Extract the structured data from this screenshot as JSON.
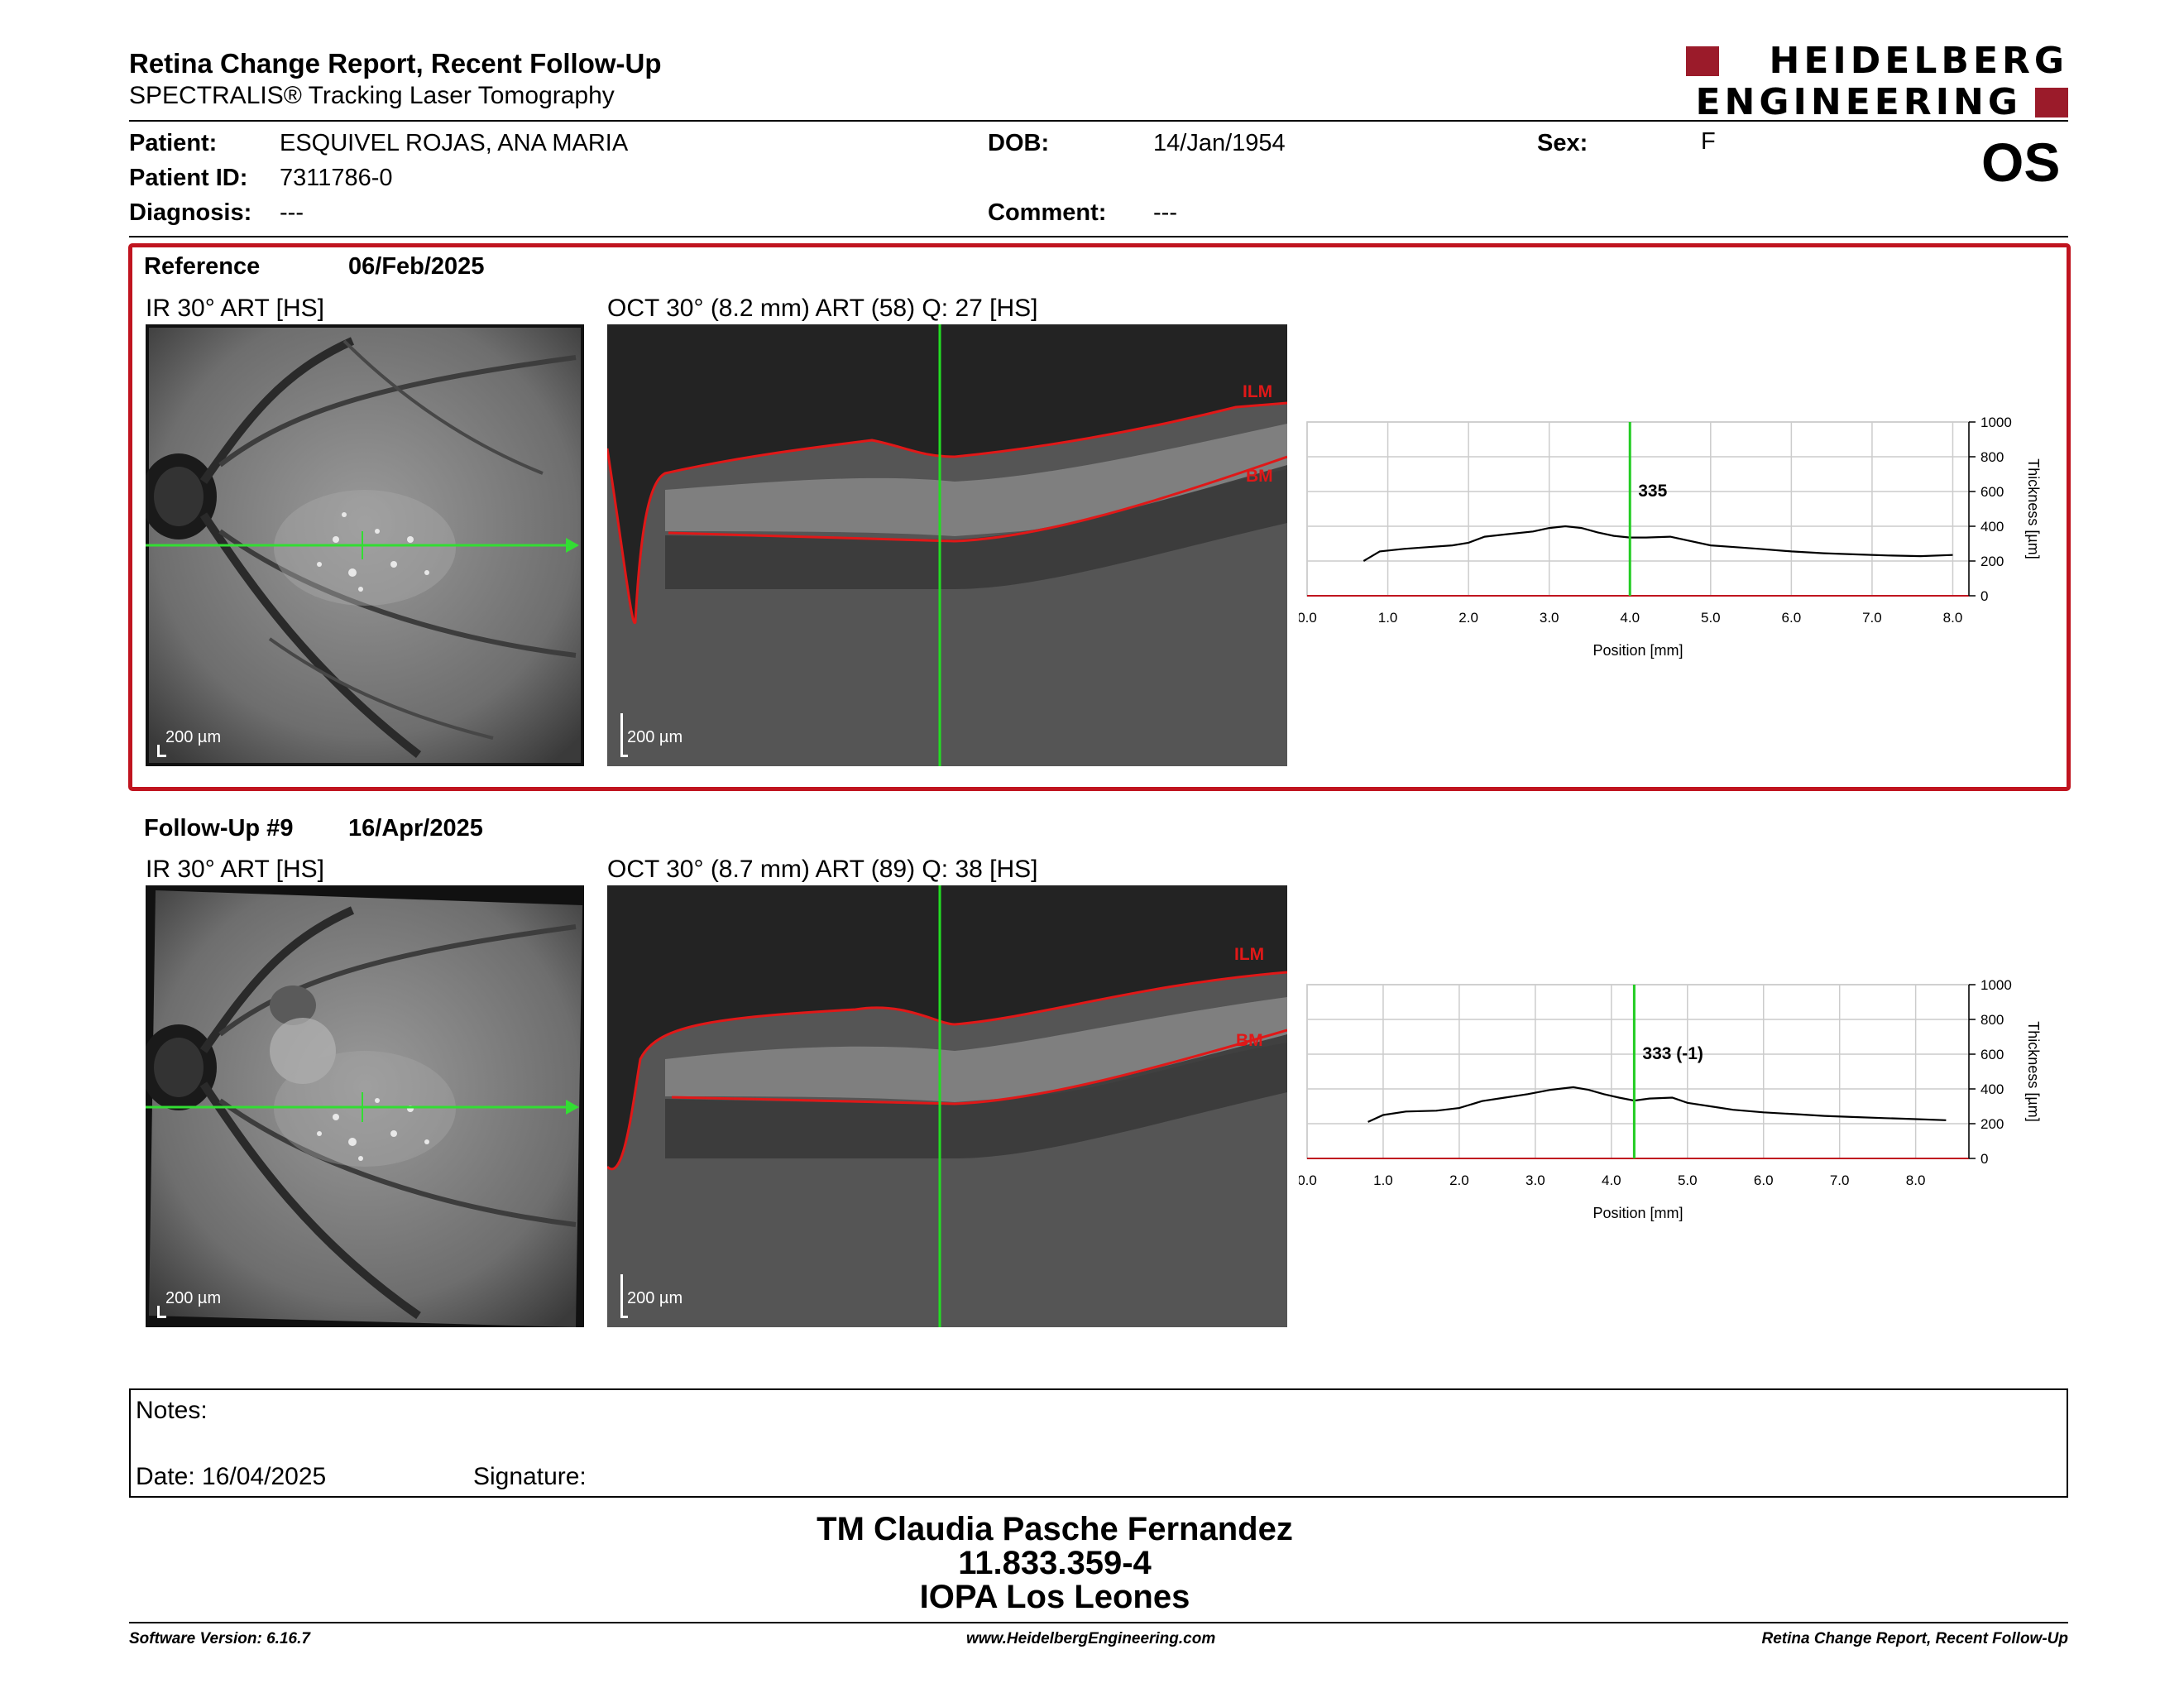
{
  "header": {
    "title": "Retina Change Report, Recent Follow-Up",
    "subtitle": "SPECTRALIS® Tracking Laser Tomography",
    "logo_line1": "HEIDELBERG",
    "logo_line2": "ENGINEERING",
    "brand_color": "#9b1b2a",
    "eye": "OS"
  },
  "patient": {
    "patient_label": "Patient:",
    "patient_name": "ESQUIVEL ROJAS, ANA MARIA",
    "id_label": "Patient ID:",
    "id_value": "7311786-0",
    "diagnosis_label": "Diagnosis:",
    "diagnosis_value": "---",
    "dob_label": "DOB:",
    "dob_value": "14/Jan/1954",
    "comment_label": "Comment:",
    "comment_value": "---",
    "sex_label": "Sex:",
    "sex_value": "F"
  },
  "reference": {
    "label": "Reference",
    "date": "06/Feb/2025",
    "ir_title": "IR 30° ART [HS]",
    "oct_title": "OCT 30° (8.2 mm) ART (58) Q: 27 [HS]",
    "ir_scale": "200 µm",
    "oct_scale": "200 µm",
    "ilm_label": "ILM",
    "bm_label": "BM",
    "highlight_color": "#c0141f"
  },
  "followup": {
    "label": "Follow-Up #9",
    "date": "16/Apr/2025",
    "ir_title": "IR 30° ART [HS]",
    "oct_title": "OCT 30° (8.7 mm) ART (89) Q: 38 [HS]",
    "ir_scale": "200 µm",
    "oct_scale": "200 µm",
    "ilm_label": "ILM",
    "bm_label": "BM"
  },
  "chart_data": [
    {
      "type": "line",
      "xlabel": "Position [mm]",
      "ylabel": "Thickness [µm]",
      "xlim": [
        0,
        8.2
      ],
      "ylim": [
        0,
        1000
      ],
      "x_ticks": [
        "0.0",
        "1.0",
        "2.0",
        "3.0",
        "4.0",
        "5.0",
        "6.0",
        "7.0",
        "8.0"
      ],
      "y_ticks": [
        "0",
        "200",
        "400",
        "600",
        "800",
        "1000"
      ],
      "grid": true,
      "marker_x": 4.0,
      "marker_label": "335",
      "series": [
        {
          "x": [
            0.7,
            0.9,
            1.2,
            1.5,
            1.8,
            2.0,
            2.2,
            2.5,
            2.8,
            3.0,
            3.2,
            3.4,
            3.6,
            3.8,
            4.0,
            4.2,
            4.5,
            4.7,
            5.0,
            5.3,
            5.6,
            6.0,
            6.4,
            6.8,
            7.2,
            7.6,
            8.0
          ],
          "y": [
            200,
            255,
            270,
            280,
            290,
            305,
            340,
            355,
            370,
            390,
            400,
            390,
            365,
            345,
            335,
            335,
            340,
            320,
            290,
            280,
            270,
            255,
            245,
            238,
            232,
            228,
            235
          ]
        }
      ]
    },
    {
      "type": "line",
      "xlabel": "Position [mm]",
      "ylabel": "Thickness [µm]",
      "xlim": [
        0,
        8.7
      ],
      "ylim": [
        0,
        1000
      ],
      "x_ticks": [
        "0.0",
        "1.0",
        "2.0",
        "3.0",
        "4.0",
        "5.0",
        "6.0",
        "7.0",
        "8.0"
      ],
      "y_ticks": [
        "0",
        "200",
        "400",
        "600",
        "800",
        "1000"
      ],
      "grid": true,
      "marker_x": 4.3,
      "marker_label": "333 (-1)",
      "series": [
        {
          "x": [
            0.8,
            1.0,
            1.3,
            1.7,
            2.0,
            2.3,
            2.6,
            2.9,
            3.2,
            3.5,
            3.7,
            3.9,
            4.1,
            4.3,
            4.5,
            4.8,
            5.0,
            5.3,
            5.6,
            6.0,
            6.4,
            6.8,
            7.2,
            7.6,
            8.0,
            8.4
          ],
          "y": [
            210,
            250,
            270,
            275,
            290,
            330,
            350,
            370,
            395,
            410,
            395,
            370,
            350,
            333,
            345,
            350,
            320,
            300,
            280,
            265,
            255,
            245,
            238,
            232,
            226,
            220
          ]
        }
      ]
    }
  ],
  "notes": {
    "label": "Notes:",
    "date_label": "Date: 16/04/2025",
    "signature_label": "Signature:"
  },
  "signer": {
    "line1": "TM Claudia Pasche Fernandez",
    "line2": "11.833.359-4",
    "line3": "IOPA Los Leones"
  },
  "footer": {
    "version": "Software Version: 6.16.7",
    "website": "www.HeidelbergEngineering.com",
    "report": "Retina Change Report, Recent Follow-Up"
  }
}
